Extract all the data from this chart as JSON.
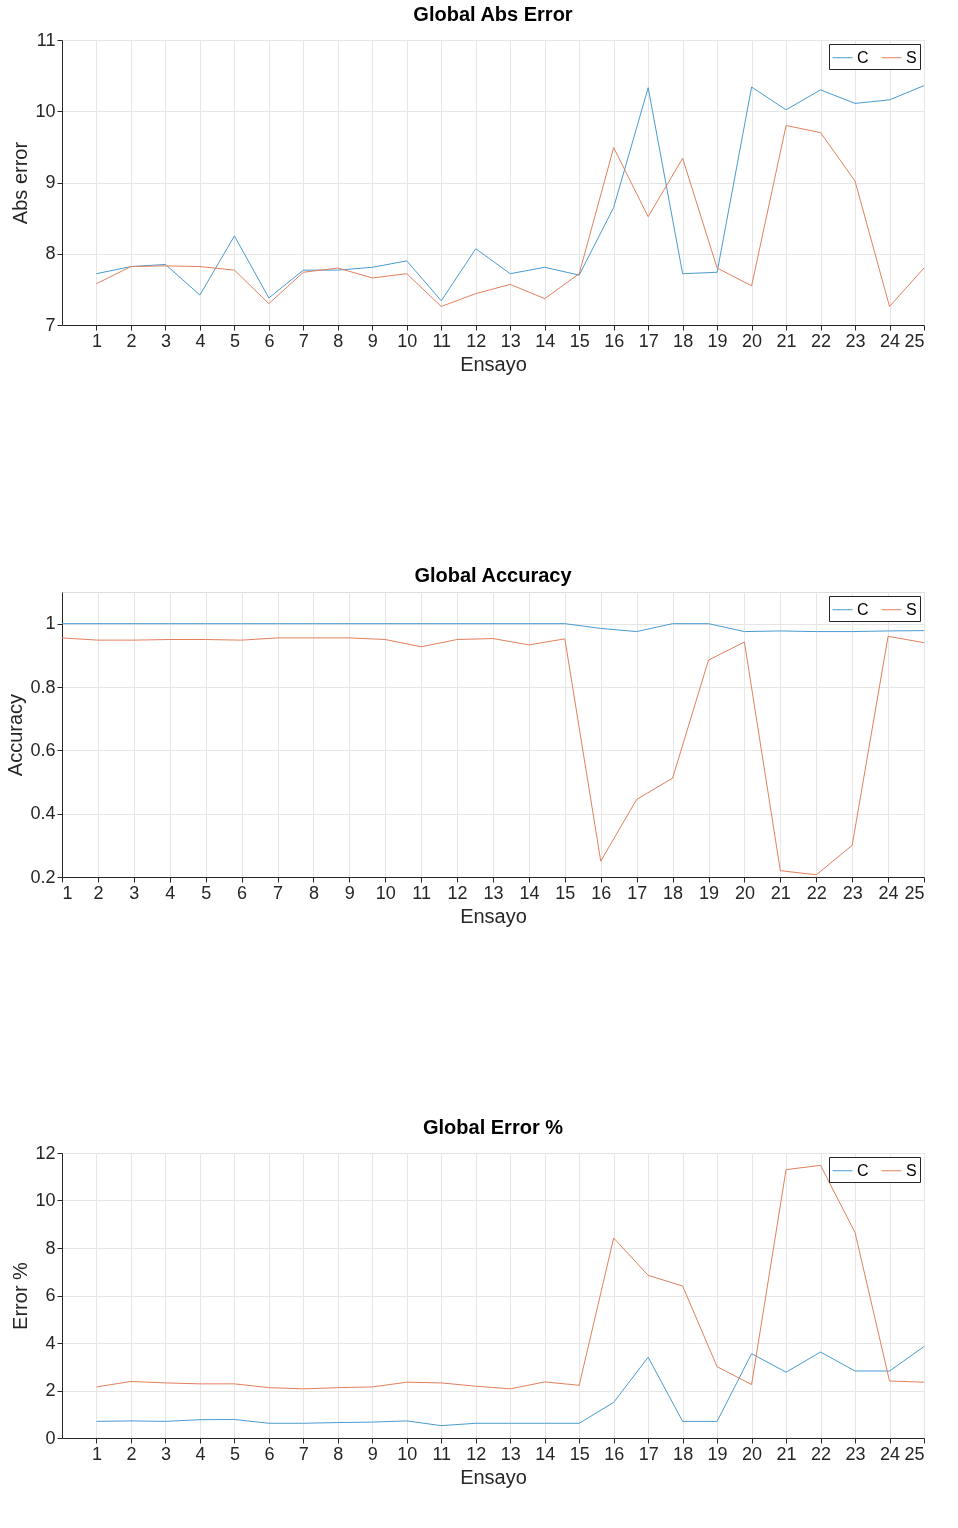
{
  "chart_data": [
    {
      "type": "line",
      "title": "Global Abs Error",
      "xlabel": "Ensayo",
      "ylabel": "Abs error",
      "x": [
        1,
        2,
        3,
        4,
        5,
        6,
        7,
        8,
        9,
        10,
        11,
        12,
        13,
        14,
        15,
        16,
        17,
        18,
        19,
        20,
        21,
        22,
        23,
        24,
        25
      ],
      "xlim": [
        0,
        25
      ],
      "xticks": [
        1,
        2,
        3,
        4,
        5,
        6,
        7,
        8,
        9,
        10,
        11,
        12,
        13,
        14,
        15,
        16,
        17,
        18,
        19,
        20,
        21,
        22,
        23,
        24,
        25
      ],
      "ylim": [
        7,
        11
      ],
      "yticks": [
        7,
        8,
        9,
        10,
        11
      ],
      "grid": true,
      "legend": "top right",
      "series": [
        {
          "name": "C",
          "color": "#4a9bd1",
          "values": [
            7.72,
            7.82,
            7.85,
            7.42,
            8.25,
            7.38,
            7.77,
            7.77,
            7.81,
            7.9,
            7.34,
            8.07,
            7.72,
            7.81,
            7.7,
            8.65,
            10.33,
            7.72,
            7.74,
            10.34,
            10.02,
            10.3,
            10.11,
            10.16,
            10.36
          ]
        },
        {
          "name": "S",
          "color": "#e2805e",
          "values": [
            7.58,
            7.82,
            7.83,
            7.82,
            7.77,
            7.3,
            7.74,
            7.8,
            7.66,
            7.72,
            7.26,
            7.44,
            7.57,
            7.37,
            7.72,
            9.49,
            8.52,
            9.34,
            7.8,
            7.55,
            9.8,
            9.7,
            9.02,
            7.26,
            7.8
          ]
        }
      ]
    },
    {
      "type": "line",
      "title": "Global Accuracy",
      "xlabel": "Ensayo",
      "ylabel": "Accuracy",
      "x": [
        1,
        2,
        3,
        4,
        5,
        6,
        7,
        8,
        9,
        10,
        11,
        12,
        13,
        14,
        15,
        16,
        17,
        18,
        19,
        20,
        21,
        22,
        23,
        24,
        25
      ],
      "xlim": [
        1,
        25
      ],
      "xticks": [
        1,
        2,
        3,
        4,
        5,
        6,
        7,
        8,
        9,
        10,
        11,
        12,
        13,
        14,
        15,
        16,
        17,
        18,
        19,
        20,
        21,
        22,
        23,
        24,
        25
      ],
      "ylim": [
        0.2,
        1.1
      ],
      "yticks": [
        0.2,
        0.4,
        0.6,
        0.8,
        1
      ],
      "grid": true,
      "legend": "top right",
      "series": [
        {
          "name": "C",
          "color": "#4a9bd1",
          "values": [
            1,
            1,
            1,
            1,
            1,
            1,
            1,
            1,
            1,
            1,
            1,
            1,
            1,
            1,
            1,
            0.985,
            0.975,
            1,
            1,
            0.975,
            0.977,
            0.975,
            0.975,
            0.977,
            0.978
          ]
        },
        {
          "name": "S",
          "color": "#e2805e",
          "values": [
            0.955,
            0.948,
            0.948,
            0.95,
            0.95,
            0.948,
            0.955,
            0.955,
            0.955,
            0.95,
            0.927,
            0.95,
            0.953,
            0.933,
            0.952,
            0.25,
            0.445,
            0.512,
            0.885,
            0.942,
            0.22,
            0.207,
            0.3,
            0.96,
            0.94
          ]
        }
      ]
    },
    {
      "type": "line",
      "title": "Global Error %",
      "xlabel": "Ensayo",
      "ylabel": "Error %",
      "x": [
        1,
        2,
        3,
        4,
        5,
        6,
        7,
        8,
        9,
        10,
        11,
        12,
        13,
        14,
        15,
        16,
        17,
        18,
        19,
        20,
        21,
        22,
        23,
        24,
        25
      ],
      "xlim": [
        0,
        25
      ],
      "xticks": [
        1,
        2,
        3,
        4,
        5,
        6,
        7,
        8,
        9,
        10,
        11,
        12,
        13,
        14,
        15,
        16,
        17,
        18,
        19,
        20,
        21,
        22,
        23,
        24,
        25
      ],
      "ylim": [
        0,
        12
      ],
      "yticks": [
        0,
        2,
        4,
        6,
        8,
        10,
        12
      ],
      "grid": true,
      "legend": "top right",
      "series": [
        {
          "name": "C",
          "color": "#4a9bd1",
          "values": [
            0.7,
            0.72,
            0.7,
            0.77,
            0.78,
            0.62,
            0.62,
            0.65,
            0.67,
            0.72,
            0.52,
            0.62,
            0.62,
            0.62,
            0.62,
            1.5,
            3.4,
            0.7,
            0.7,
            3.55,
            2.77,
            3.62,
            2.82,
            2.82,
            3.85
          ]
        },
        {
          "name": "S",
          "color": "#e2805e",
          "values": [
            2.15,
            2.38,
            2.32,
            2.28,
            2.28,
            2.12,
            2.07,
            2.12,
            2.15,
            2.35,
            2.32,
            2.18,
            2.07,
            2.36,
            2.22,
            8.42,
            6.85,
            6.4,
            3.0,
            2.25,
            11.3,
            11.48,
            8.65,
            2.4,
            2.35
          ]
        }
      ]
    }
  ]
}
